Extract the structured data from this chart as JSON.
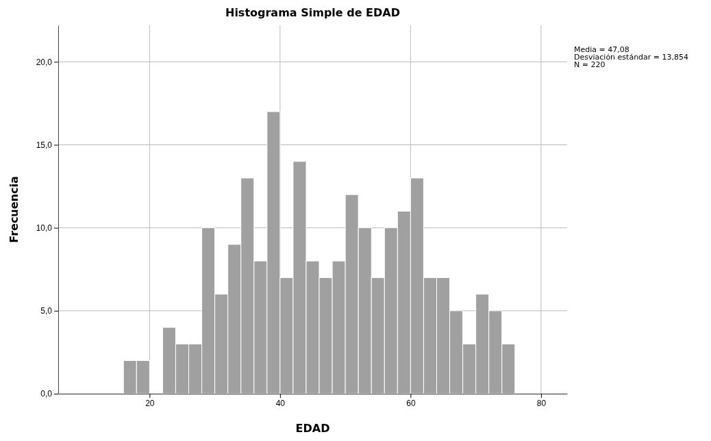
{
  "chart_data": {
    "type": "histogram",
    "title": "Histograma Simple de EDAD",
    "xlabel": "EDAD",
    "ylabel": "Frecuencia",
    "bins": [
      16,
      18,
      20,
      22,
      24,
      26,
      28,
      30,
      32,
      34,
      36,
      38,
      40,
      42,
      44,
      46,
      48,
      50,
      52,
      54,
      56,
      58,
      60,
      62,
      64,
      66,
      68,
      70,
      72,
      74,
      76
    ],
    "values": [
      2,
      2,
      0,
      4,
      3,
      3,
      10,
      6,
      9,
      13,
      8,
      17,
      7,
      14,
      8,
      7,
      8,
      12,
      10,
      7,
      10,
      11,
      13,
      7,
      7,
      5,
      3,
      6,
      5,
      3
    ],
    "color": "#a0a0a0",
    "xlim": [
      6,
      84
    ],
    "xticks": [
      20,
      40,
      60,
      80
    ],
    "ylim": [
      0,
      22.2
    ],
    "yticks": [
      {
        "value": 0,
        "label": "0,0"
      },
      {
        "value": 5,
        "label": "5,0"
      },
      {
        "value": 10,
        "label": "10,0"
      },
      {
        "value": 15,
        "label": "15,0"
      },
      {
        "value": 20,
        "label": "20,0"
      }
    ],
    "grid": true,
    "annotations": [
      "Media = 47,08",
      "Desviación estándar = 13,854",
      "N = 220"
    ]
  }
}
